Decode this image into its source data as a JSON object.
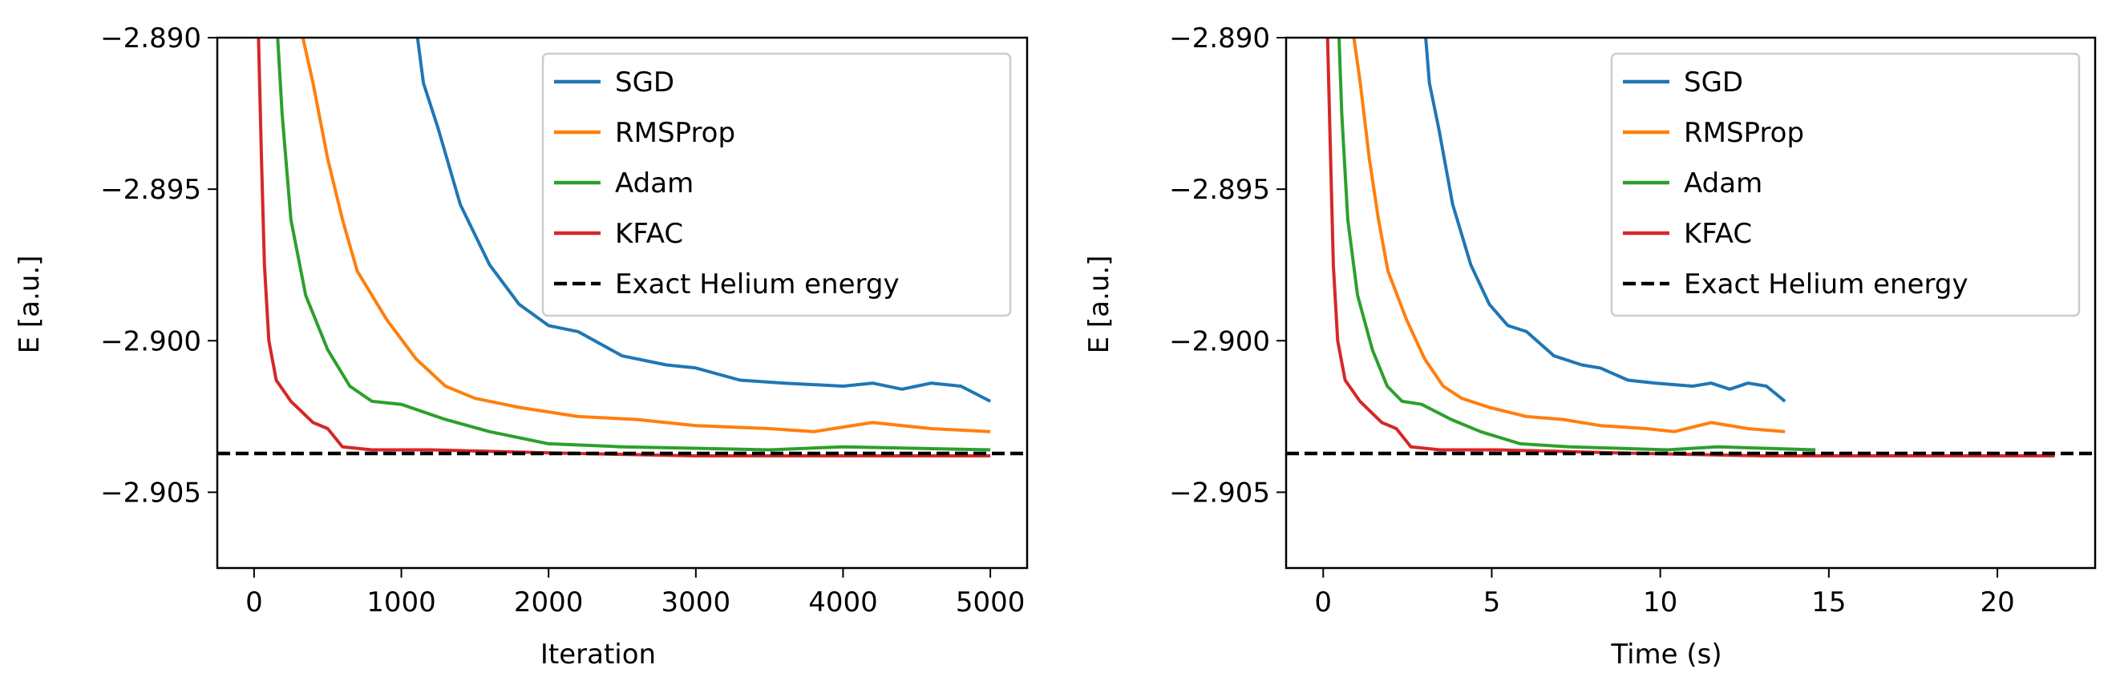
{
  "chart_data": [
    {
      "type": "line",
      "xlabel": "Iteration",
      "ylabel": "E [a.u.]",
      "xlim": [
        -250,
        5250
      ],
      "ylim": [
        -2.9075,
        -2.89
      ],
      "xticks": [
        0,
        1000,
        2000,
        3000,
        4000,
        5000
      ],
      "xtick_labels": [
        "0",
        "1000",
        "2000",
        "3000",
        "4000",
        "5000"
      ],
      "yticks": [
        -2.89,
        -2.895,
        -2.9,
        -2.905
      ],
      "ytick_labels": [
        "−2.890",
        "−2.895",
        "−2.900",
        "−2.905"
      ],
      "grid": false,
      "legend": "top-right",
      "series": [
        {
          "name": "SGD",
          "color": "#1f77b4",
          "x": [
            1110,
            1150,
            1250,
            1400,
            1600,
            1800,
            2000,
            2200,
            2500,
            2800,
            3000,
            3300,
            3600,
            4000,
            4200,
            4400,
            4600,
            4800,
            5000
          ],
          "y": [
            -2.89,
            -2.8915,
            -2.893,
            -2.8955,
            -2.8975,
            -2.8988,
            -2.8995,
            -2.8997,
            -2.9005,
            -2.9008,
            -2.9009,
            -2.9013,
            -2.9014,
            -2.9015,
            -2.9014,
            -2.9016,
            -2.9014,
            -2.9015,
            -2.902
          ]
        },
        {
          "name": "RMSProp",
          "color": "#ff7f0e",
          "x": [
            331,
            400,
            500,
            600,
            700,
            900,
            1100,
            1300,
            1500,
            1800,
            2200,
            2600,
            3000,
            3500,
            3800,
            4200,
            4600,
            5000
          ],
          "y": [
            -2.89,
            -2.8915,
            -2.894,
            -2.896,
            -2.8977,
            -2.8993,
            -2.9006,
            -2.9015,
            -2.9019,
            -2.9022,
            -2.9025,
            -2.9026,
            -2.9028,
            -2.9029,
            -2.903,
            -2.9027,
            -2.9029,
            -2.903
          ]
        },
        {
          "name": "Adam",
          "color": "#2ca02c",
          "x": [
            160,
            190,
            250,
            350,
            500,
            650,
            800,
            1000,
            1300,
            1600,
            2000,
            2500,
            3500,
            4000,
            5000
          ],
          "y": [
            -2.89,
            -2.8925,
            -2.896,
            -2.8985,
            -2.9003,
            -2.9015,
            -2.902,
            -2.9021,
            -2.9026,
            -2.903,
            -2.9034,
            -2.9035,
            -2.9036,
            -2.9035,
            -2.9036
          ]
        },
        {
          "name": "KFAC",
          "color": "#d62728",
          "x": [
            30,
            50,
            70,
            100,
            150,
            250,
            400,
            500,
            600,
            800,
            1200,
            2000,
            3000,
            4000,
            5000
          ],
          "y": [
            -2.89,
            -2.894,
            -2.8975,
            -2.9,
            -2.9013,
            -2.902,
            -2.9027,
            -2.9029,
            -2.9035,
            -2.9036,
            -2.9036,
            -2.9037,
            -2.9038,
            -2.9038,
            -2.9038
          ]
        }
      ],
      "reference_line": {
        "name": "Exact Helium energy",
        "y": -2.90372,
        "color": "#000000",
        "style": "dashed"
      }
    },
    {
      "type": "line",
      "xlabel": "Time (s)",
      "ylabel": "E [a.u.]",
      "xlim": [
        -1.1,
        22.9
      ],
      "ylim": [
        -2.9075,
        -2.89
      ],
      "xticks": [
        0,
        5,
        10,
        15,
        20
      ],
      "xtick_labels": [
        "0",
        "5",
        "10",
        "15",
        "20"
      ],
      "yticks": [
        -2.89,
        -2.895,
        -2.9,
        -2.905
      ],
      "ytick_labels": [
        "−2.890",
        "−2.895",
        "−2.900",
        "−2.905"
      ],
      "grid": false,
      "legend": "top-right",
      "series": [
        {
          "name": "SGD",
          "color": "#1f77b4",
          "x": [
            3.04,
            3.15,
            3.43,
            3.84,
            4.38,
            4.93,
            5.48,
            6.03,
            6.85,
            7.67,
            8.22,
            9.04,
            9.86,
            10.96,
            11.51,
            12.06,
            12.6,
            13.15,
            13.7
          ],
          "y": [
            -2.89,
            -2.8915,
            -2.893,
            -2.8955,
            -2.8975,
            -2.8988,
            -2.8995,
            -2.8997,
            -2.9005,
            -2.9008,
            -2.9009,
            -2.9013,
            -2.9014,
            -2.9015,
            -2.9014,
            -2.9016,
            -2.9014,
            -2.9015,
            -2.902
          ]
        },
        {
          "name": "RMSProp",
          "color": "#ff7f0e",
          "x": [
            0.91,
            1.1,
            1.37,
            1.64,
            1.92,
            2.47,
            3.01,
            3.56,
            4.11,
            4.93,
            6.03,
            7.12,
            8.22,
            9.59,
            10.41,
            11.51,
            12.6,
            13.7
          ],
          "y": [
            -2.89,
            -2.8915,
            -2.894,
            -2.896,
            -2.8977,
            -2.8993,
            -2.9006,
            -2.9015,
            -2.9019,
            -2.9022,
            -2.9025,
            -2.9026,
            -2.9028,
            -2.9029,
            -2.903,
            -2.9027,
            -2.9029,
            -2.903
          ]
        },
        {
          "name": "Adam",
          "color": "#2ca02c",
          "x": [
            0.47,
            0.55,
            0.73,
            1.02,
            1.46,
            1.9,
            2.34,
            2.92,
            3.8,
            4.67,
            5.84,
            7.3,
            10.22,
            11.68,
            14.6
          ],
          "y": [
            -2.89,
            -2.8925,
            -2.896,
            -2.8985,
            -2.9003,
            -2.9015,
            -2.902,
            -2.9021,
            -2.9026,
            -2.903,
            -2.9034,
            -2.9035,
            -2.9036,
            -2.9035,
            -2.9036
          ]
        },
        {
          "name": "KFAC",
          "color": "#d62728",
          "x": [
            0.13,
            0.22,
            0.3,
            0.43,
            0.65,
            1.09,
            1.74,
            2.17,
            2.6,
            3.47,
            5.21,
            8.68,
            13.02,
            17.36,
            21.7
          ],
          "y": [
            -2.89,
            -2.894,
            -2.8975,
            -2.9,
            -2.9013,
            -2.902,
            -2.9027,
            -2.9029,
            -2.9035,
            -2.9036,
            -2.9036,
            -2.9037,
            -2.9038,
            -2.9038,
            -2.9038
          ]
        }
      ],
      "reference_line": {
        "name": "Exact Helium energy",
        "y": -2.90372,
        "color": "#000000",
        "style": "dashed"
      }
    }
  ]
}
